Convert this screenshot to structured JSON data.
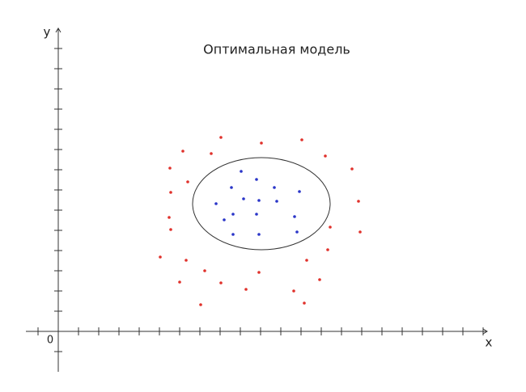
{
  "chart_data": {
    "type": "scatter",
    "title": "Оптимальная модель",
    "x_label": "x",
    "y_label": "y",
    "origin_label": "0",
    "xlim": [
      -1.6,
      21.2
    ],
    "ylim": [
      -2,
      15
    ],
    "xticks": [
      -1,
      1,
      2,
      3,
      4,
      5,
      6,
      7,
      8,
      9,
      10,
      11,
      12,
      13,
      14,
      15,
      16,
      17,
      18,
      19,
      20,
      21
    ],
    "yticks": [
      -1,
      1,
      2,
      3,
      4,
      5,
      6,
      7,
      8,
      9,
      10,
      11,
      12,
      13,
      14
    ],
    "series": [
      {
        "color": "#e0312b",
        "x": [
          8.04,
          6.16,
          7.56,
          10.04,
          12.04,
          13.2,
          14.52,
          5.52,
          6.4,
          5.56,
          14.84,
          5.48,
          5.56,
          13.44,
          14.92,
          13.32,
          5.04,
          6.32,
          12.28,
          7.24,
          9.92,
          6.0,
          8.04,
          12.92,
          9.28,
          11.64,
          7.04,
          12.16
        ],
        "values": [
          9.6,
          8.92,
          8.8,
          9.32,
          9.48,
          8.68,
          8.04,
          8.08,
          7.4,
          6.88,
          6.44,
          5.64,
          5.04,
          5.16,
          4.92,
          4.04,
          3.68,
          3.52,
          3.52,
          3.0,
          2.92,
          2.44,
          2.4,
          2.56,
          2.08,
          2.0,
          1.32,
          1.4
        ]
      },
      {
        "color": "#2a35c8",
        "x": [
          9.04,
          9.8,
          10.68,
          8.56,
          11.92,
          9.16,
          9.92,
          10.8,
          7.8,
          8.64,
          9.8,
          8.2,
          11.68,
          8.64,
          9.92,
          11.8
        ],
        "values": [
          7.92,
          7.52,
          7.12,
          7.12,
          6.92,
          6.56,
          6.48,
          6.44,
          6.32,
          5.8,
          5.8,
          5.52,
          5.68,
          4.8,
          4.8,
          4.92
        ]
      }
    ]
  }
}
